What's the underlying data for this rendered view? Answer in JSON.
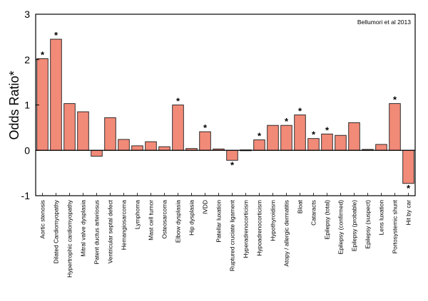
{
  "chart_data": {
    "type": "bar",
    "title": "",
    "xlabel": "",
    "ylabel": "Odds Ratio*",
    "ylim": [
      -1,
      3
    ],
    "yticks": [
      "-1",
      "0",
      "1",
      "2",
      "3"
    ],
    "annotation": "Bellumori et al 2013",
    "significance_marker": "*",
    "colors": {
      "bar_fill": "#f28a78",
      "bar_stroke": "#1a1a1a",
      "axis": "#000000"
    },
    "categories": [
      "Aortic stenosis",
      "Dilated Cardiomyopathy",
      "Hypertrophic cardiomyopathy",
      "Mitral valve dysplasia",
      "Patent ductus arteriosus",
      "Ventricular septal defect",
      "Hemangiosarcoma",
      "Lymphoma",
      "Mast cell tumor",
      "Osteosarcoma",
      "Elbow dysplasia",
      "Hip dysplasia",
      "IVDD",
      "Patellar luxation",
      "Ruptured cruciate ligament",
      "Hyperadrenocorticism",
      "Hypoadrenocorticism",
      "Hypothyroidism",
      "Atopy / allergic dermatitis",
      "Bloat",
      "Cataracts",
      "Epilepsy (total)",
      "Epilepsy (confirmed)",
      "Epilepsy (probable)",
      "Epilepsy (suspect)",
      "Lens luxation",
      "Portosystemic shunt",
      "Hit by car"
    ],
    "values": [
      2.02,
      2.45,
      1.03,
      0.85,
      -0.13,
      0.72,
      0.24,
      0.1,
      0.19,
      0.08,
      1.0,
      0.04,
      0.41,
      0.03,
      -0.22,
      0.01,
      0.23,
      0.55,
      0.55,
      0.78,
      0.26,
      0.36,
      0.33,
      0.61,
      0.02,
      0.13,
      1.03,
      -0.73
    ],
    "significant": [
      true,
      true,
      false,
      false,
      false,
      false,
      false,
      false,
      false,
      false,
      true,
      false,
      true,
      false,
      true,
      false,
      true,
      false,
      true,
      true,
      true,
      true,
      false,
      false,
      false,
      false,
      true,
      true
    ]
  }
}
